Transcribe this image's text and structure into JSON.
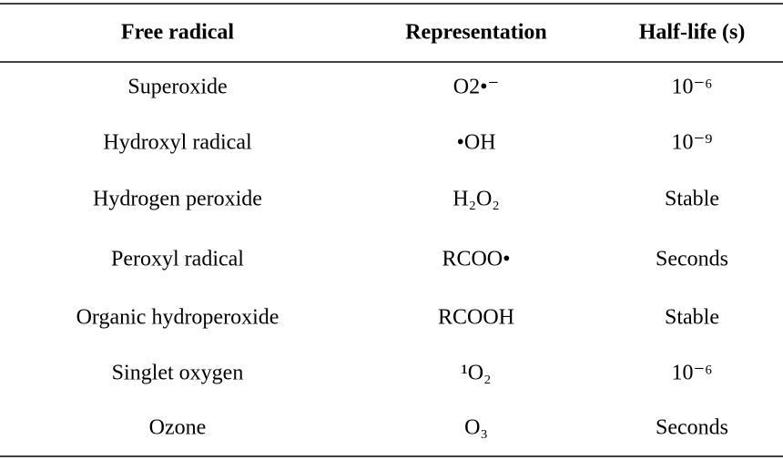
{
  "table": {
    "header": [
      "Free radical",
      "Representation",
      "Half-life (s)"
    ],
    "rows": [
      [
        "Superoxide",
        "O2•⁻",
        "10⁻⁶"
      ],
      [
        "Hydroxyl radical",
        "•OH",
        "10⁻⁹"
      ],
      [
        "Hydrogen peroxide",
        "H₂O₂",
        "Stable"
      ],
      [
        "Peroxyl radical",
        "RCOO•",
        "Seconds"
      ],
      [
        "Organic hydroperoxide",
        "RCOOH",
        "Stable"
      ],
      [
        "Singlet oxygen",
        "¹O₂",
        "10⁻⁶"
      ],
      [
        "Ozone",
        "O₃",
        "Seconds"
      ]
    ]
  }
}
